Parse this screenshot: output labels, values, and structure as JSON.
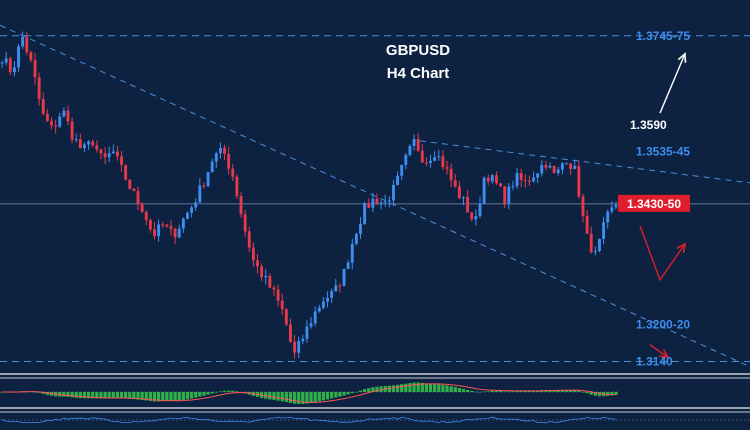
{
  "chart_data": {
    "type": "candlestick",
    "title": "GBPUSD",
    "subtitle": "H4 Chart",
    "colors": {
      "background": "#0d2140",
      "bull": "#3d8ef0",
      "bear": "#e8394a",
      "level_text": "#3d8ef0",
      "current_box": "#e01e2b",
      "macd_hist": "#2fae4a",
      "macd_signal": "#ff5555",
      "trendline": "#4a90d9"
    },
    "price_path": [
      1.372,
      1.369,
      1.376,
      1.37,
      1.361,
      1.358,
      1.362,
      1.357,
      1.354,
      1.356,
      1.352,
      1.354,
      1.35,
      1.346,
      1.343,
      1.338,
      1.34,
      1.338,
      1.341,
      1.344,
      1.348,
      1.353,
      1.354,
      1.349,
      1.34,
      1.333,
      1.33,
      1.327,
      1.323,
      1.315,
      1.319,
      1.323,
      1.326,
      1.327,
      1.331,
      1.338,
      1.343,
      1.345,
      1.344,
      1.347,
      1.352,
      1.356,
      1.352,
      1.354,
      1.351,
      1.347,
      1.344,
      1.34,
      1.35,
      1.348,
      1.345,
      1.349,
      1.348,
      1.35,
      1.352,
      1.349,
      1.353,
      1.35,
      1.338,
      1.334,
      1.341,
      1.344
    ],
    "levels": [
      {
        "label": "1.3745-75",
        "price": 1.376,
        "style": "blue",
        "dashed": true
      },
      {
        "label": "1.3590",
        "price": 1.359,
        "style": "white",
        "dashed": false
      },
      {
        "label": "1.3535-45",
        "price": 1.354,
        "style": "blue",
        "dashed": false
      },
      {
        "label": "1.3430-50",
        "price": 1.344,
        "style": "box",
        "dashed": false
      },
      {
        "label": "1.3200-20",
        "price": 1.321,
        "style": "blue",
        "dashed": false
      },
      {
        "label": "1.3140",
        "price": 1.314,
        "style": "blue",
        "dashed": true
      }
    ],
    "trendlines": [
      {
        "from": [
          0,
          1.378
        ],
        "to": [
          1.0,
          1.313
        ]
      },
      {
        "from": [
          0.56,
          1.356
        ],
        "to": [
          1.0,
          1.348
        ]
      }
    ],
    "indicator": "MACD",
    "grid": false
  }
}
